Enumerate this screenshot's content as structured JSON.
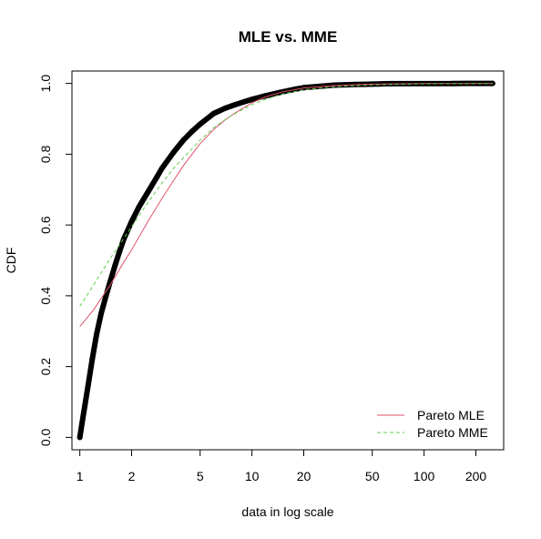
{
  "chart_data": {
    "type": "scatter",
    "title": "MLE vs. MME",
    "xlabel": "data in log scale",
    "ylabel": "CDF",
    "x_scale": "log",
    "xlim": [
      0.9,
      290
    ],
    "ylim": [
      -0.035,
      1.035
    ],
    "x_ticks": [
      {
        "value": 1,
        "label": "1"
      },
      {
        "value": 2,
        "label": "2"
      },
      {
        "value": 5,
        "label": "5"
      },
      {
        "value": 10,
        "label": "10"
      },
      {
        "value": 20,
        "label": "20"
      },
      {
        "value": 50,
        "label": "50"
      },
      {
        "value": 100,
        "label": "100"
      },
      {
        "value": 200,
        "label": "200"
      }
    ],
    "y_ticks": [
      {
        "value": 0.0,
        "label": "0.0"
      },
      {
        "value": 0.2,
        "label": "0.2"
      },
      {
        "value": 0.4,
        "label": "0.4"
      },
      {
        "value": 0.6,
        "label": "0.6"
      },
      {
        "value": 0.8,
        "label": "0.8"
      },
      {
        "value": 1.0,
        "label": "1.0"
      }
    ],
    "grid": false,
    "legend_position": "bottom-right",
    "empirical": {
      "color": "#000000",
      "points": [
        [
          1.0,
          0.0
        ],
        [
          1.03,
          0.04
        ],
        [
          1.07,
          0.09
        ],
        [
          1.12,
          0.15
        ],
        [
          1.18,
          0.22
        ],
        [
          1.25,
          0.29
        ],
        [
          1.33,
          0.35
        ],
        [
          1.42,
          0.4
        ],
        [
          1.5,
          0.44
        ],
        [
          1.6,
          0.485
        ],
        [
          1.7,
          0.525
        ],
        [
          1.8,
          0.56
        ],
        [
          2.0,
          0.61
        ],
        [
          2.2,
          0.65
        ],
        [
          2.5,
          0.695
        ],
        [
          2.8,
          0.735
        ],
        [
          3.0,
          0.76
        ],
        [
          3.5,
          0.805
        ],
        [
          4.0,
          0.84
        ],
        [
          4.5,
          0.865
        ],
        [
          5.0,
          0.885
        ],
        [
          6.0,
          0.915
        ],
        [
          7.0,
          0.93
        ],
        [
          8.0,
          0.94
        ],
        [
          9.0,
          0.948
        ],
        [
          10.0,
          0.955
        ],
        [
          12.0,
          0.965
        ],
        [
          15.0,
          0.976
        ],
        [
          18.0,
          0.984
        ],
        [
          20.0,
          0.988
        ],
        [
          25.0,
          0.992
        ],
        [
          30.0,
          0.995
        ],
        [
          35.0,
          0.996
        ],
        [
          40.0,
          0.997
        ],
        [
          45.0,
          0.9975
        ],
        [
          50.0,
          0.998
        ],
        [
          55.0,
          0.9985
        ],
        [
          58.0,
          0.999
        ],
        [
          65.0,
          0.9993
        ],
        [
          145.0,
          0.9996
        ],
        [
          150.0,
          0.9998
        ],
        [
          250.0,
          1.0
        ]
      ]
    },
    "series": [
      {
        "name": "Pareto MLE",
        "color": "#DF536B",
        "dash": "solid",
        "points": [
          [
            1.0,
            0.313
          ],
          [
            1.2,
            0.36
          ],
          [
            1.5,
            0.43
          ],
          [
            1.8,
            0.495
          ],
          [
            2.0,
            0.53
          ],
          [
            2.5,
            0.612
          ],
          [
            3.0,
            0.675
          ],
          [
            3.5,
            0.725
          ],
          [
            4.0,
            0.768
          ],
          [
            5.0,
            0.83
          ],
          [
            6.0,
            0.87
          ],
          [
            7.0,
            0.897
          ],
          [
            8.0,
            0.917
          ],
          [
            10.0,
            0.945
          ],
          [
            12.0,
            0.962
          ],
          [
            15.0,
            0.976
          ],
          [
            20.0,
            0.987
          ],
          [
            30.0,
            0.994
          ],
          [
            50.0,
            0.998
          ],
          [
            100.0,
            0.9995
          ],
          [
            250.0,
            0.9999
          ]
        ]
      },
      {
        "name": "Pareto MME",
        "color": "#61D04F",
        "dash": "dashed",
        "points": [
          [
            1.0,
            0.37
          ],
          [
            1.2,
            0.43
          ],
          [
            1.5,
            0.505
          ],
          [
            1.8,
            0.562
          ],
          [
            2.0,
            0.595
          ],
          [
            2.5,
            0.665
          ],
          [
            3.0,
            0.718
          ],
          [
            3.5,
            0.76
          ],
          [
            4.0,
            0.79
          ],
          [
            5.0,
            0.84
          ],
          [
            6.0,
            0.875
          ],
          [
            7.0,
            0.898
          ],
          [
            8.0,
            0.915
          ],
          [
            10.0,
            0.94
          ],
          [
            12.0,
            0.955
          ],
          [
            15.0,
            0.97
          ],
          [
            20.0,
            0.982
          ],
          [
            30.0,
            0.991
          ],
          [
            50.0,
            0.996
          ],
          [
            100.0,
            0.999
          ],
          [
            250.0,
            0.9998
          ]
        ]
      }
    ]
  }
}
